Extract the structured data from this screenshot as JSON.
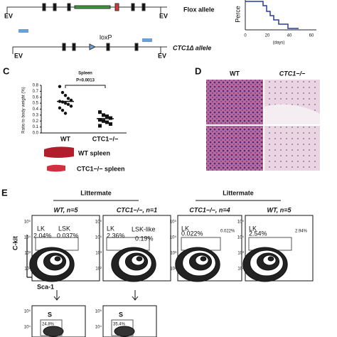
{
  "panel_a": {
    "flox_label": "Flox allele",
    "delta_label": "CTC1Δ allele",
    "loxp": "loxP",
    "ev": [
      "EV",
      "EV",
      "EV",
      "EV"
    ],
    "survival": {
      "y_label": "Perce",
      "x_label": "(days)",
      "xticks": [
        0,
        20,
        40,
        60
      ]
    }
  },
  "panel_c": {
    "letter": "C",
    "title": "Spleen",
    "p_value": "P=0.0013",
    "y_label": "Ratio to body weight (%)",
    "ylim": [
      0,
      0.8
    ],
    "yticks": [
      {
        "value": 0,
        "label": "0.0"
      },
      {
        "value": 0.1,
        "label": "0.1"
      },
      {
        "value": 0.2,
        "label": "0.2"
      },
      {
        "value": 0.3,
        "label": "0.3"
      },
      {
        "value": 0.4,
        "label": "0.4"
      },
      {
        "value": 0.5,
        "label": "0.5"
      },
      {
        "value": 0.6,
        "label": "0.6"
      },
      {
        "value": 0.7,
        "label": "0.7"
      },
      {
        "value": 0.8,
        "label": "0.8"
      }
    ],
    "groups": [
      {
        "name": "WT",
        "values": [
          0.78,
          0.68,
          0.63,
          0.58,
          0.55,
          0.53,
          0.52,
          0.5,
          0.48,
          0.45,
          0.42,
          0.38,
          0.33
        ],
        "mean": 0.53
      },
      {
        "name": "CTC1−/−",
        "values": [
          0.35,
          0.3,
          0.28,
          0.25,
          0.22,
          0.2,
          0.18,
          0.15,
          0.12
        ],
        "mean": 0.24
      }
    ],
    "spleen_labels": [
      "WT spleen",
      "CTC1−/− spleen"
    ]
  },
  "panel_d": {
    "letter": "D",
    "columns": [
      "WT",
      "CTC1−/−"
    ]
  },
  "panel_e": {
    "letter": "E",
    "groups": [
      "Littermate",
      "Littermate"
    ],
    "plots": [
      {
        "title": "WT, n=5",
        "labels": [
          "LK",
          "LSK",
          "2.04%",
          "0.037%"
        ]
      },
      {
        "title": "CTC1−/−, n=1",
        "labels": [
          "LK",
          "2.36%",
          "LSK-like",
          "0.19%"
        ]
      },
      {
        "title": "CTC1−/−, n=4",
        "labels": [
          "LK",
          "0.022%",
          "0.022%"
        ]
      },
      {
        "title": "WT, n=5",
        "labels": [
          "LK",
          "2.54%",
          "2.94%"
        ]
      }
    ],
    "y_axis": "C-kit",
    "x_axis": "Sca-1",
    "flow_ticks": [
      "10⁵",
      "10⁴",
      "10³",
      "10²"
    ],
    "sub_plots": [
      {
        "labels": [
          "S",
          "24.8%"
        ]
      },
      {
        "labels": [
          "S",
          "35.4%"
        ]
      }
    ]
  }
}
